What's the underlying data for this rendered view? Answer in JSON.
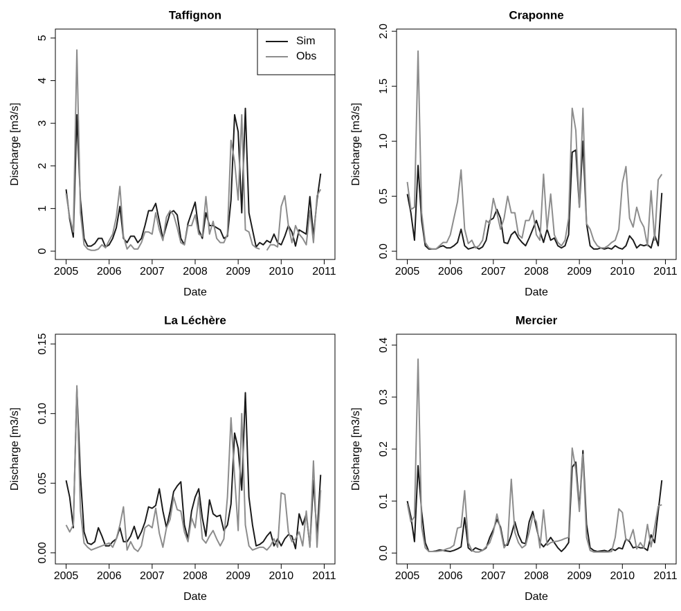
{
  "chart_data": [
    {
      "type": "line",
      "title": "Taffignon",
      "xlabel": "Date",
      "ylabel": "Discharge [m3/s]",
      "legend": "topright",
      "x": [
        2005,
        2005.083,
        2005.167,
        2005.25,
        2005.333,
        2005.417,
        2005.5,
        2005.583,
        2005.667,
        2005.75,
        2005.833,
        2005.917,
        2006,
        2006.083,
        2006.167,
        2006.25,
        2006.333,
        2006.417,
        2006.5,
        2006.583,
        2006.667,
        2006.75,
        2006.833,
        2006.917,
        2007,
        2007.083,
        2007.167,
        2007.25,
        2007.333,
        2007.417,
        2007.5,
        2007.583,
        2007.667,
        2007.75,
        2007.833,
        2007.917,
        2008,
        2008.083,
        2008.167,
        2008.25,
        2008.333,
        2008.417,
        2008.5,
        2008.583,
        2008.667,
        2008.75,
        2008.833,
        2008.917,
        2009,
        2009.083,
        2009.167,
        2009.25,
        2009.333,
        2009.417,
        2009.5,
        2009.583,
        2009.667,
        2009.75,
        2009.833,
        2009.917,
        2010,
        2010.083,
        2010.167,
        2010.25,
        2010.333,
        2010.417,
        2010.5,
        2010.583,
        2010.667,
        2010.75,
        2010.833,
        2010.917
      ],
      "xlim": [
        2004.75,
        2011.25
      ],
      "xticks": [
        2005,
        2006,
        2007,
        2008,
        2009,
        2010,
        2011
      ],
      "ylim": [
        -0.195,
        5.21
      ],
      "yticks": [
        0,
        1,
        2,
        3,
        4,
        5
      ],
      "series": [
        {
          "name": "Sim",
          "color": "#1a1a1a",
          "values": [
            1.45,
            0.75,
            0.33,
            3.2,
            1.2,
            0.3,
            0.12,
            0.12,
            0.18,
            0.3,
            0.3,
            0.1,
            0.15,
            0.3,
            0.55,
            1.05,
            0.3,
            0.2,
            0.35,
            0.35,
            0.2,
            0.3,
            0.6,
            0.95,
            0.95,
            1.12,
            0.7,
            0.3,
            0.6,
            0.9,
            0.95,
            0.85,
            0.3,
            0.15,
            0.65,
            0.9,
            1.15,
            0.5,
            0.3,
            0.9,
            0.6,
            0.6,
            0.55,
            0.5,
            0.3,
            0.35,
            1.2,
            3.2,
            2.8,
            0.9,
            3.35,
            0.9,
            0.5,
            0.1,
            0.2,
            0.15,
            0.25,
            0.2,
            0.4,
            0.2,
            0.15,
            0.35,
            0.6,
            0.45,
            0.12,
            0.5,
            0.45,
            0.4,
            1.28,
            0.35,
            1.2,
            1.82
          ]
        },
        {
          "name": "Obs",
          "color": "#8c8c8c",
          "values": [
            1.35,
            0.8,
            0.45,
            4.72,
            0.9,
            0.15,
            0.05,
            0.02,
            0.02,
            0.05,
            0.15,
            0.08,
            0.25,
            0.4,
            0.8,
            1.52,
            0.35,
            0.05,
            0.15,
            0.05,
            0.05,
            0.2,
            0.45,
            0.45,
            0.4,
            0.9,
            0.5,
            0.25,
            0.8,
            0.95,
            0.85,
            0.55,
            0.2,
            0.15,
            0.6,
            0.6,
            0.85,
            0.4,
            0.35,
            1.28,
            0.4,
            0.7,
            0.3,
            0.2,
            0.2,
            0.4,
            2.6,
            2.1,
            1.2,
            3.2,
            0.5,
            0.45,
            0.15,
            0.08,
            0.05,
            null,
            0.02,
            0.15,
            0.15,
            0.1,
            1.05,
            1.3,
            0.6,
            0.2,
            0.6,
            0.4,
            0.3,
            0.15,
            0.95,
            0.2,
            1.3,
            1.45
          ]
        }
      ]
    },
    {
      "type": "line",
      "title": "Craponne",
      "xlabel": "Date",
      "ylabel": "Discharge [m3/s]",
      "x": [
        2005,
        2005.083,
        2005.167,
        2005.25,
        2005.333,
        2005.417,
        2005.5,
        2005.583,
        2005.667,
        2005.75,
        2005.833,
        2005.917,
        2006,
        2006.083,
        2006.167,
        2006.25,
        2006.333,
        2006.417,
        2006.5,
        2006.583,
        2006.667,
        2006.75,
        2006.833,
        2006.917,
        2007,
        2007.083,
        2007.167,
        2007.25,
        2007.333,
        2007.417,
        2007.5,
        2007.583,
        2007.667,
        2007.75,
        2007.833,
        2007.917,
        2008,
        2008.083,
        2008.167,
        2008.25,
        2008.333,
        2008.417,
        2008.5,
        2008.583,
        2008.667,
        2008.75,
        2008.833,
        2008.917,
        2009,
        2009.083,
        2009.167,
        2009.25,
        2009.333,
        2009.417,
        2009.5,
        2009.583,
        2009.667,
        2009.75,
        2009.833,
        2009.917,
        2010,
        2010.083,
        2010.167,
        2010.25,
        2010.333,
        2010.417,
        2010.5,
        2010.583,
        2010.667,
        2010.75,
        2010.833,
        2010.917
      ],
      "xlim": [
        2004.75,
        2011.25
      ],
      "xticks": [
        2005,
        2006,
        2007,
        2008,
        2009,
        2010,
        2011
      ],
      "ylim": [
        -0.075,
        2.02
      ],
      "yticks": [
        {
          "value": 0,
          "label": "0.0"
        },
        0.5,
        {
          "value": 1,
          "label": "1.0"
        },
        1.5,
        {
          "value": 2,
          "label": "2.0"
        }
      ],
      "series": [
        {
          "name": "Sim",
          "color": "#1a1a1a",
          "values": [
            0.52,
            0.35,
            0.1,
            0.78,
            0.28,
            0.05,
            0.02,
            0.02,
            0.02,
            0.04,
            0.05,
            0.03,
            0.03,
            0.05,
            0.08,
            0.2,
            0.05,
            0.02,
            0.03,
            0.04,
            0.02,
            0.04,
            0.1,
            0.28,
            0.3,
            0.38,
            0.3,
            0.08,
            0.07,
            0.15,
            0.18,
            0.12,
            0.08,
            0.05,
            0.12,
            0.2,
            0.28,
            0.18,
            0.08,
            0.2,
            0.1,
            0.12,
            0.05,
            0.03,
            0.05,
            0.15,
            0.9,
            0.92,
            0.4,
            1.0,
            0.25,
            0.05,
            0.02,
            0.02,
            0.03,
            0.02,
            0.03,
            0.02,
            0.05,
            0.03,
            0.02,
            0.05,
            0.14,
            0.1,
            0.03,
            0.06,
            0.05,
            0.06,
            0.03,
            0.15,
            0.05,
            0.53
          ]
        },
        {
          "name": "Obs",
          "color": "#8c8c8c",
          "values": [
            0.63,
            0.38,
            0.4,
            1.82,
            0.35,
            0.08,
            0.03,
            0.02,
            0.02,
            0.05,
            0.08,
            0.08,
            0.15,
            0.3,
            0.45,
            0.74,
            0.2,
            0.07,
            0.1,
            0.03,
            0.05,
            0.1,
            0.28,
            0.25,
            0.48,
            0.35,
            0.2,
            0.3,
            0.5,
            0.35,
            0.35,
            0.15,
            0.12,
            0.28,
            0.28,
            0.37,
            0.15,
            0.1,
            0.7,
            0.2,
            0.52,
            0.15,
            0.08,
            0.05,
            0.1,
            0.3,
            1.3,
            1.1,
            0.4,
            1.3,
            0.25,
            0.2,
            0.1,
            0.05,
            0.03,
            0.03,
            0.05,
            0.08,
            0.1,
            0.2,
            0.62,
            0.77,
            0.3,
            0.22,
            0.4,
            0.28,
            0.22,
            0.05,
            0.55,
            0.1,
            0.65,
            0.7
          ]
        }
      ]
    },
    {
      "type": "line",
      "title": "La Léchère",
      "xlabel": "Date",
      "ylabel": "Discharge [m3/s]",
      "x": [
        2005,
        2005.083,
        2005.167,
        2005.25,
        2005.333,
        2005.417,
        2005.5,
        2005.583,
        2005.667,
        2005.75,
        2005.833,
        2005.917,
        2006,
        2006.083,
        2006.167,
        2006.25,
        2006.333,
        2006.417,
        2006.5,
        2006.583,
        2006.667,
        2006.75,
        2006.833,
        2006.917,
        2007,
        2007.083,
        2007.167,
        2007.25,
        2007.333,
        2007.417,
        2007.5,
        2007.583,
        2007.667,
        2007.75,
        2007.833,
        2007.917,
        2008,
        2008.083,
        2008.167,
        2008.25,
        2008.333,
        2008.417,
        2008.5,
        2008.583,
        2008.667,
        2008.75,
        2008.833,
        2008.917,
        2009,
        2009.083,
        2009.167,
        2009.25,
        2009.333,
        2009.417,
        2009.5,
        2009.583,
        2009.667,
        2009.75,
        2009.833,
        2009.917,
        2010,
        2010.083,
        2010.167,
        2010.25,
        2010.333,
        2010.417,
        2010.5,
        2010.583,
        2010.667,
        2010.75,
        2010.833,
        2010.917
      ],
      "xlim": [
        2004.75,
        2011.25
      ],
      "xticks": [
        2005,
        2006,
        2007,
        2008,
        2009,
        2010,
        2011
      ],
      "ylim": [
        -0.008,
        0.157
      ],
      "yticks": [
        {
          "value": 0,
          "label": "0.00"
        },
        0.05,
        {
          "value": 0.1,
          "label": "0.10"
        },
        0.15
      ],
      "series": [
        {
          "name": "Sim",
          "color": "#1a1a1a",
          "values": [
            0.052,
            0.04,
            0.018,
            0.118,
            0.055,
            0.015,
            0.007,
            0.006,
            0.008,
            0.018,
            0.012,
            0.005,
            0.005,
            0.008,
            0.01,
            0.018,
            0.008,
            0.008,
            0.012,
            0.019,
            0.01,
            0.015,
            0.022,
            0.033,
            0.032,
            0.034,
            0.046,
            0.03,
            0.018,
            0.03,
            0.044,
            0.048,
            0.051,
            0.02,
            0.01,
            0.03,
            0.04,
            0.046,
            0.025,
            0.012,
            0.038,
            0.028,
            0.026,
            0.027,
            0.016,
            0.02,
            0.035,
            0.086,
            0.075,
            0.045,
            0.115,
            0.04,
            0.02,
            0.005,
            0.006,
            0.008,
            0.012,
            0.015,
            0.005,
            0.01,
            0.005,
            0.01,
            0.013,
            0.012,
            0.003,
            0.028,
            0.02,
            0.028,
            0.005,
            0.052,
            0.012,
            0.056
          ]
        },
        {
          "name": "Obs",
          "color": "#8c8c8c",
          "values": [
            0.02,
            0.015,
            0.02,
            0.12,
            0.03,
            0.007,
            0.004,
            0.002,
            0.003,
            0.004,
            0.005,
            0.006,
            0.007,
            0.004,
            0.01,
            0.02,
            0.033,
            0.002,
            0.008,
            0.003,
            0.001,
            0.005,
            0.018,
            0.02,
            0.018,
            0.032,
            0.014,
            0.004,
            0.018,
            0.024,
            0.04,
            0.031,
            0.03,
            0.015,
            0.008,
            0.025,
            0.018,
            0.04,
            0.01,
            0.007,
            0.012,
            0.016,
            0.01,
            0.005,
            0.01,
            0.04,
            0.097,
            0.055,
            0.016,
            0.1,
            0.02,
            0.005,
            0.002,
            0.003,
            0.004,
            0.004,
            0.002,
            0.005,
            0.01,
            0.004,
            0.043,
            0.042,
            0.015,
            0.008,
            0.01,
            0.015,
            0.005,
            0.03,
            0.004,
            0.066,
            0.004,
            0.045
          ]
        }
      ]
    },
    {
      "type": "line",
      "title": "Mercier",
      "xlabel": "Date",
      "ylabel": "Discharge [m3/s]",
      "x": [
        2005,
        2005.083,
        2005.167,
        2005.25,
        2005.333,
        2005.417,
        2005.5,
        2005.583,
        2005.667,
        2005.75,
        2005.833,
        2005.917,
        2006,
        2006.083,
        2006.167,
        2006.25,
        2006.333,
        2006.417,
        2006.5,
        2006.583,
        2006.667,
        2006.75,
        2006.833,
        2006.917,
        2007,
        2007.083,
        2007.167,
        2007.25,
        2007.333,
        2007.417,
        2007.5,
        2007.583,
        2007.667,
        2007.75,
        2007.833,
        2007.917,
        2008,
        2008.083,
        2008.167,
        2008.25,
        2008.333,
        2008.417,
        2008.5,
        2008.583,
        2008.667,
        2008.75,
        2008.833,
        2008.917,
        2009,
        2009.083,
        2009.167,
        2009.25,
        2009.333,
        2009.417,
        2009.5,
        2009.583,
        2009.667,
        2009.75,
        2009.833,
        2009.917,
        2010,
        2010.083,
        2010.167,
        2010.25,
        2010.333,
        2010.417,
        2010.5,
        2010.583,
        2010.667,
        2010.75,
        2010.833,
        2010.917
      ],
      "xlim": [
        2004.75,
        2011.25
      ],
      "xticks": [
        2005,
        2006,
        2007,
        2008,
        2009,
        2010,
        2011
      ],
      "ylim": [
        -0.021,
        0.421
      ],
      "yticks": [
        {
          "value": 0,
          "label": "0.0"
        },
        0.1,
        0.2,
        0.3,
        0.4
      ],
      "series": [
        {
          "name": "Sim",
          "color": "#1a1a1a",
          "values": [
            0.1,
            0.07,
            0.022,
            0.168,
            0.08,
            0.02,
            0.003,
            0.003,
            0.004,
            0.006,
            0.005,
            0.004,
            0.003,
            0.005,
            0.008,
            0.012,
            0.068,
            0.01,
            0.004,
            0.01,
            0.007,
            0.005,
            0.01,
            0.03,
            0.045,
            0.065,
            0.05,
            0.015,
            0.015,
            0.035,
            0.06,
            0.035,
            0.02,
            0.018,
            0.06,
            0.08,
            0.05,
            0.02,
            0.012,
            0.02,
            0.03,
            0.02,
            0.01,
            0.003,
            0.01,
            0.02,
            0.165,
            0.175,
            0.085,
            0.197,
            0.055,
            0.01,
            0.005,
            0.003,
            0.004,
            0.005,
            0.003,
            0.008,
            0.005,
            0.01,
            0.008,
            0.027,
            0.022,
            0.01,
            0.012,
            0.01,
            0.01,
            0.005,
            0.035,
            0.02,
            0.08,
            0.14
          ]
        },
        {
          "name": "Obs",
          "color": "#8c8c8c",
          "values": [
            0.095,
            0.06,
            0.07,
            0.373,
            0.05,
            0.01,
            0.003,
            0.003,
            0.003,
            0.004,
            0.005,
            0.008,
            0.01,
            0.015,
            0.048,
            0.05,
            0.12,
            0.02,
            0.005,
            0.002,
            0.002,
            0.005,
            0.012,
            0.02,
            0.04,
            0.075,
            0.045,
            0.01,
            0.02,
            0.142,
            0.04,
            0.02,
            0.01,
            0.015,
            0.04,
            0.072,
            0.06,
            0.01,
            0.083,
            0.015,
            0.02,
            0.022,
            0.023,
            0.025,
            0.028,
            0.03,
            0.202,
            0.16,
            0.08,
            0.19,
            0.03,
            0.005,
            0.002,
            0.002,
            0.002,
            0.002,
            0.002,
            0.003,
            0.03,
            0.085,
            0.078,
            0.025,
            0.025,
            0.045,
            0.008,
            0.02,
            0.01,
            0.055,
            0.012,
            0.05,
            0.09,
            0.093
          ]
        }
      ]
    }
  ]
}
